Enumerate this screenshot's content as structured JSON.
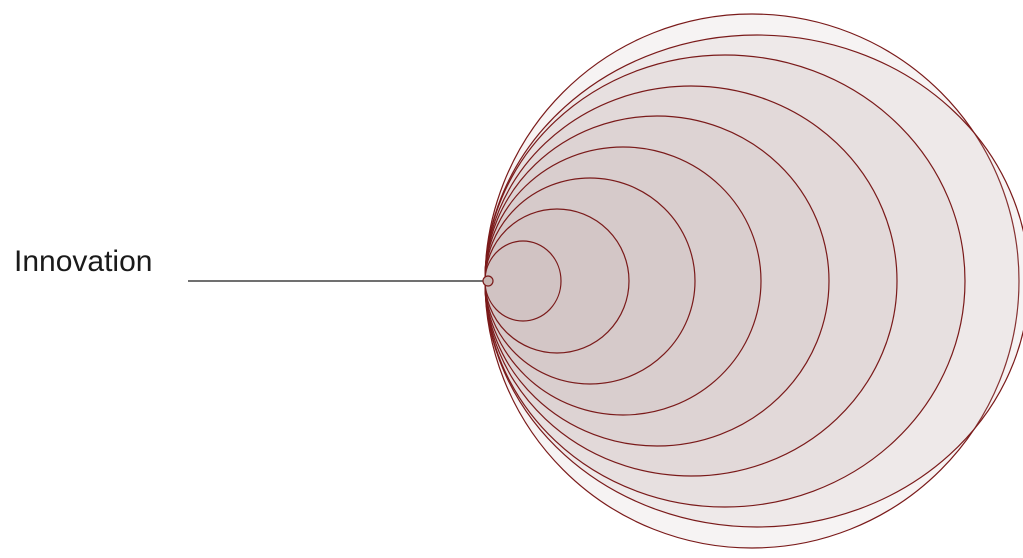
{
  "diagram": {
    "label": "Innovation",
    "ring_count": 9,
    "colors": {
      "stroke": "#7a1a1a",
      "fill": "#c9b5b2",
      "text": "#1a1a1a",
      "background": "#ffffff"
    }
  }
}
